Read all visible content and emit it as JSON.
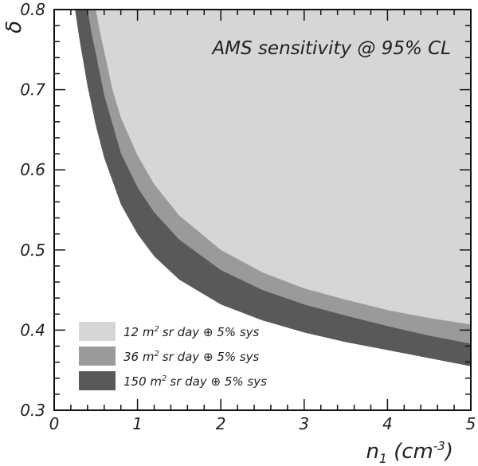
{
  "chart_data": {
    "type": "area",
    "title": "AMS sensitivity @ 95% CL",
    "xlabel": "n",
    "xlabel_sub": "1",
    "xlabel_unit": "(cm",
    "xlabel_unit_sup": "-3",
    "xlabel_unit_close": ")",
    "ylabel": "δ",
    "xlim": [
      0,
      5
    ],
    "ylim": [
      0.3,
      0.8
    ],
    "x_ticks": [
      {
        "value": 0,
        "label": "0"
      },
      {
        "value": 1,
        "label": "1"
      },
      {
        "value": 2,
        "label": "2"
      },
      {
        "value": 3,
        "label": "3"
      },
      {
        "value": 4,
        "label": "4"
      },
      {
        "value": 5,
        "label": "5"
      }
    ],
    "y_ticks": [
      {
        "value": 0.3,
        "label": "0.3"
      },
      {
        "value": 0.4,
        "label": "0.4"
      },
      {
        "value": 0.5,
        "label": "0.5"
      },
      {
        "value": 0.6,
        "label": "0.6"
      },
      {
        "value": 0.7,
        "label": "0.7"
      },
      {
        "value": 0.8,
        "label": "0.8"
      }
    ],
    "legend_position": "bottom-left",
    "series": [
      {
        "name": "150 m² sr day ⊕ 5% sys",
        "label_pre": "150",
        "label_sup": "2",
        "label_post": "sr day ⊕ 5% sys",
        "color": "#595959",
        "x": [
          0.25,
          0.3,
          0.4,
          0.5,
          0.6,
          0.8,
          1.0,
          1.2,
          1.5,
          2.0,
          2.5,
          3.0,
          3.5,
          4.0,
          4.5,
          5.0
        ],
        "y": [
          0.8,
          0.765,
          0.705,
          0.655,
          0.615,
          0.557,
          0.52,
          0.492,
          0.463,
          0.432,
          0.412,
          0.397,
          0.385,
          0.375,
          0.365,
          0.355
        ]
      },
      {
        "name": "36 m² sr day ⊕ 5% sys",
        "label_pre": "36",
        "label_sup": "2",
        "label_post": "sr day ⊕ 5% sys",
        "color": "#9a9a9a",
        "x": [
          0.4,
          0.45,
          0.5,
          0.6,
          0.8,
          1.0,
          1.2,
          1.5,
          2.0,
          2.5,
          3.0,
          3.5,
          4.0,
          4.5,
          5.0
        ],
        "y": [
          0.8,
          0.77,
          0.745,
          0.693,
          0.621,
          0.578,
          0.547,
          0.513,
          0.475,
          0.45,
          0.432,
          0.418,
          0.405,
          0.393,
          0.383
        ]
      },
      {
        "name": "12 m² sr day ⊕ 5% sys",
        "label_pre": "12",
        "label_sup": "2",
        "label_post": "sr day ⊕ 5% sys",
        "color": "#d6d6d6",
        "x": [
          0.5,
          0.55,
          0.6,
          0.7,
          0.8,
          1.0,
          1.2,
          1.5,
          2.0,
          2.5,
          3.0,
          3.5,
          4.0,
          4.5,
          5.0
        ],
        "y": [
          0.8,
          0.772,
          0.748,
          0.7,
          0.665,
          0.618,
          0.582,
          0.543,
          0.5,
          0.472,
          0.452,
          0.438,
          0.425,
          0.415,
          0.407
        ]
      }
    ]
  }
}
